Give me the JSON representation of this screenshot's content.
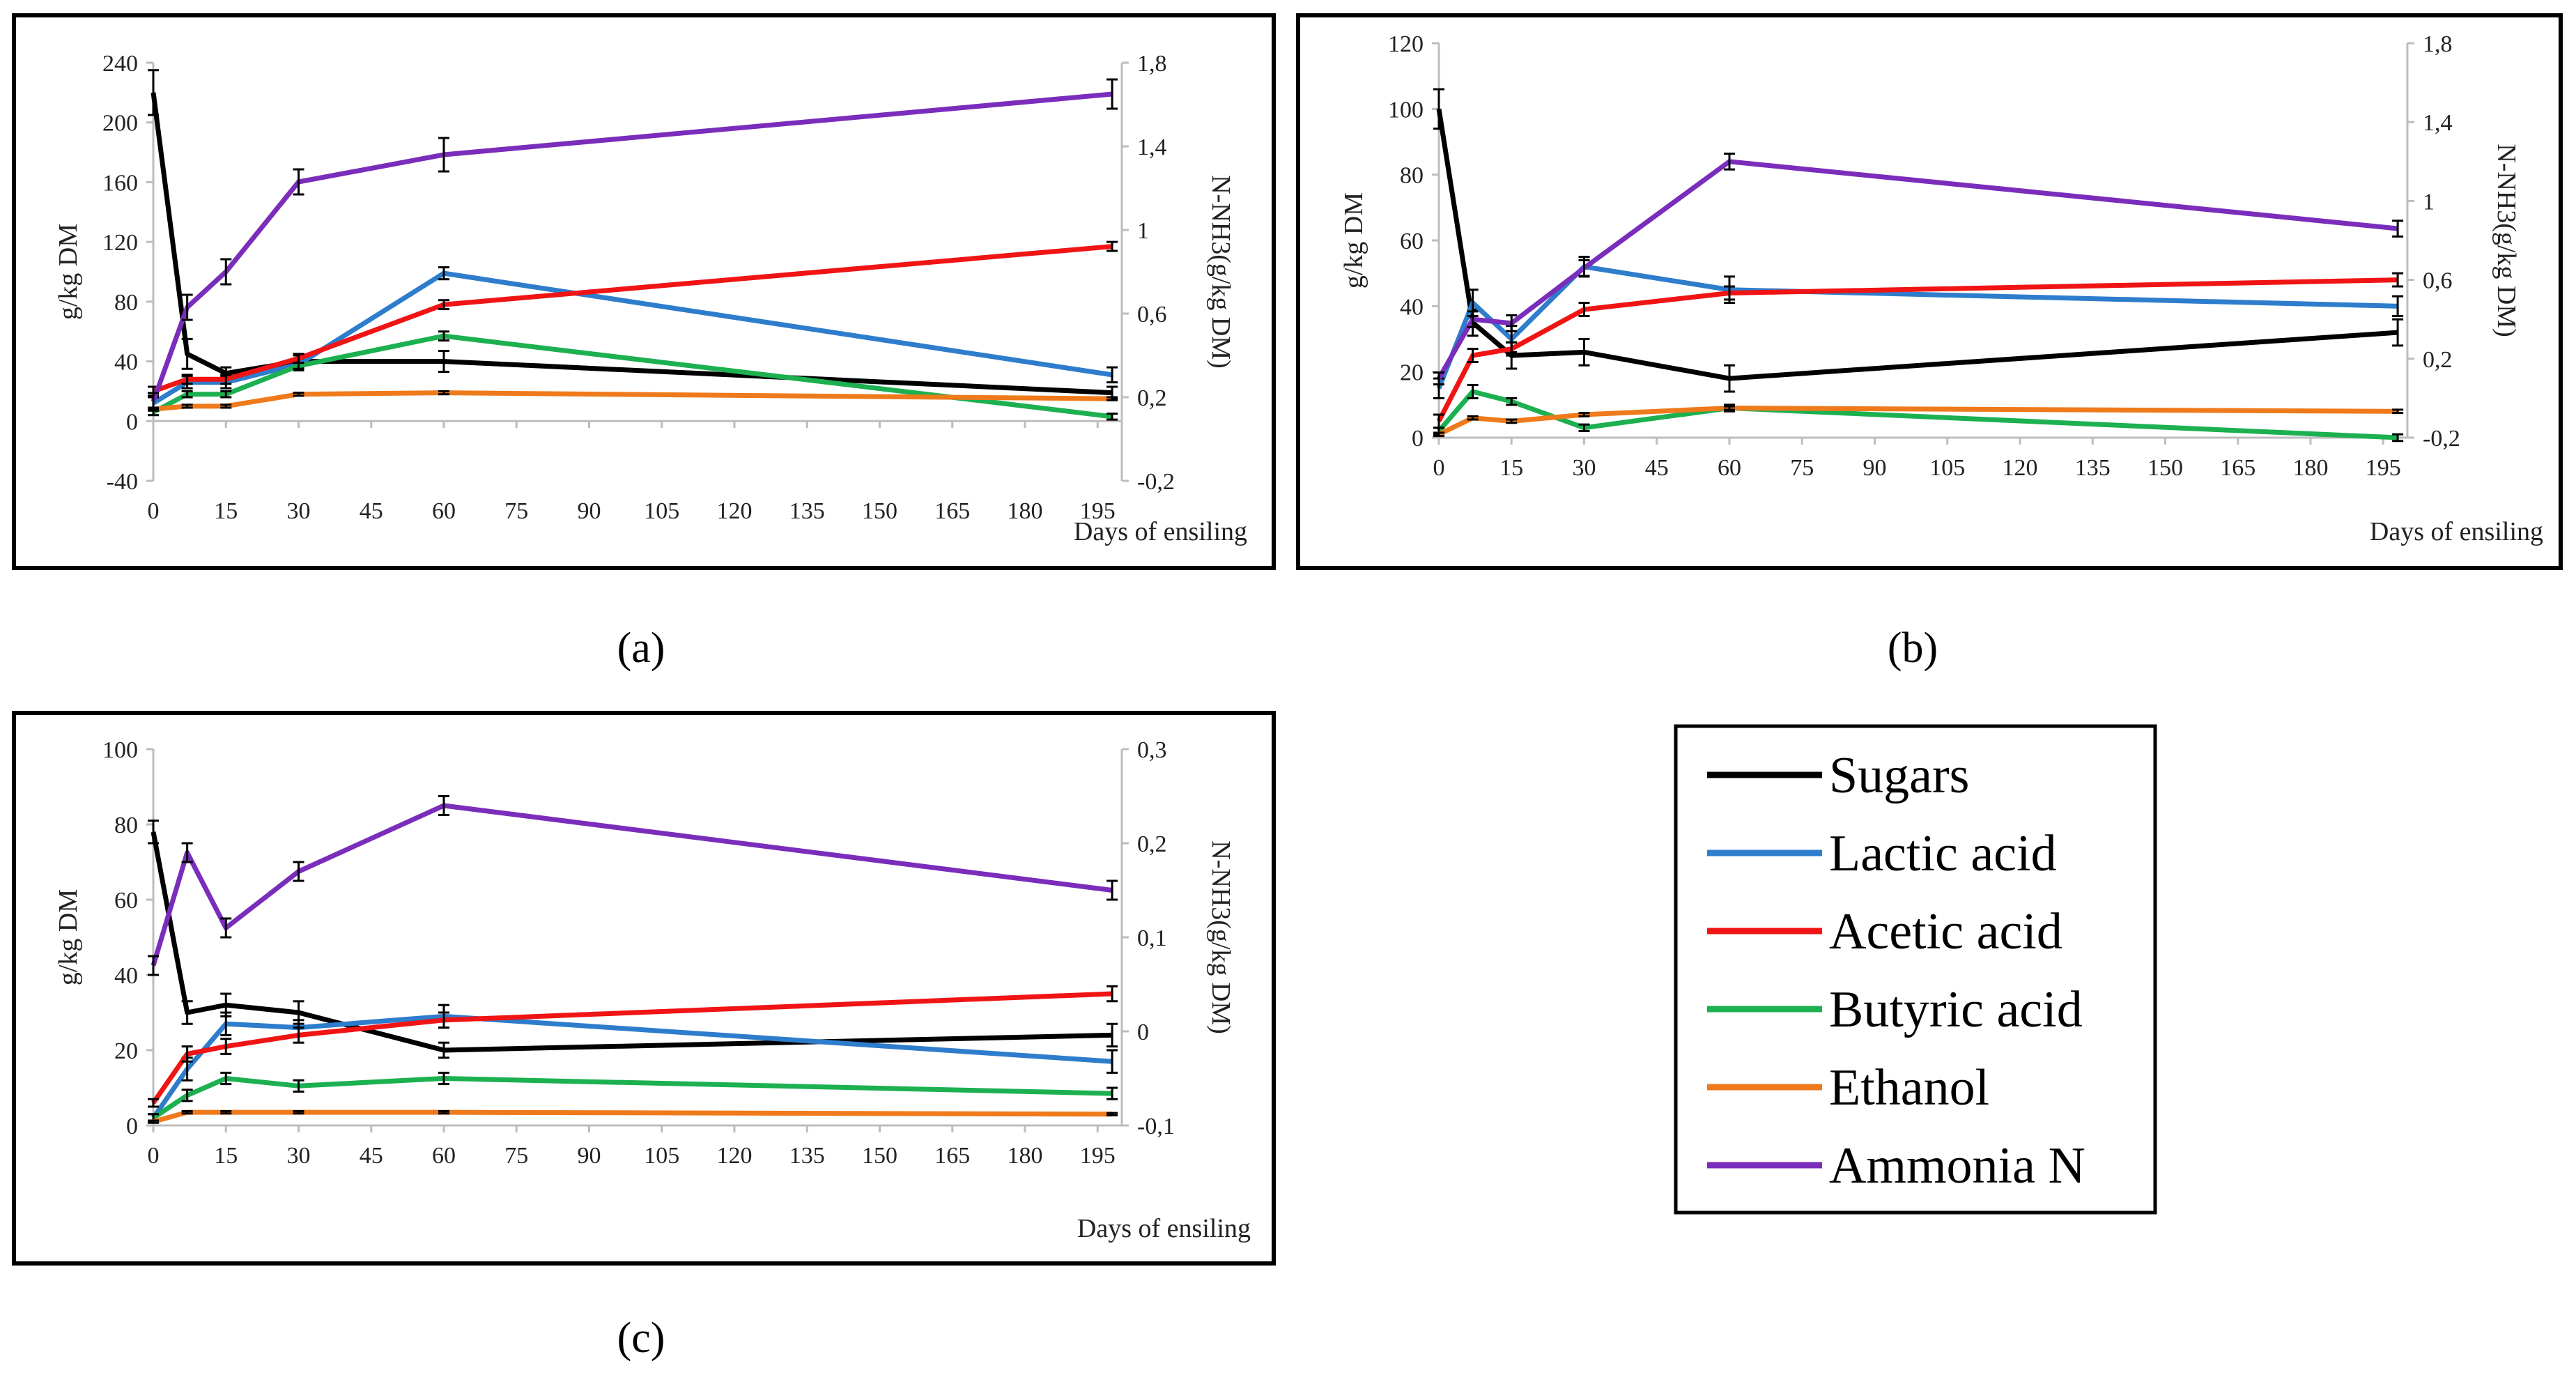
{
  "chart_data": [
    {
      "panel": "(a)",
      "type": "line",
      "xlabel": "Days of ensiling",
      "ylabel": "g/kg DM",
      "y2label": "N-NH3(g/kg DM)",
      "xlim": [
        0,
        200
      ],
      "xticks": [
        0,
        15,
        30,
        45,
        60,
        75,
        90,
        105,
        120,
        135,
        150,
        165,
        180,
        195
      ],
      "ylim": [
        -40,
        240
      ],
      "yticks": [
        "-40",
        "0",
        "40",
        "80",
        "120",
        "160",
        "200",
        "240"
      ],
      "y2lim": [
        -0.2,
        1.8
      ],
      "y2ticks": [
        "-0,2",
        "0,2",
        "0,6",
        "1",
        "1,4",
        "1,8"
      ],
      "x": [
        0,
        7,
        15,
        30,
        60,
        198
      ],
      "series": [
        {
          "name": "Sugars",
          "axis": "left",
          "values": [
            220,
            45,
            32,
            40,
            40,
            19
          ],
          "errors": [
            15,
            10,
            4,
            4,
            7,
            4
          ]
        },
        {
          "name": "Lactic acid",
          "axis": "left",
          "values": [
            12,
            26,
            26,
            38,
            99,
            31
          ],
          "errors": [
            4,
            4,
            4,
            4,
            4,
            5
          ]
        },
        {
          "name": "Acetic acid",
          "axis": "left",
          "values": [
            20,
            28,
            28,
            42,
            78,
            117
          ],
          "errors": [
            3,
            3,
            3,
            3,
            3,
            3
          ]
        },
        {
          "name": "Butyric acid",
          "axis": "left",
          "values": [
            6,
            18,
            18,
            37,
            57,
            3
          ],
          "errors": [
            2,
            2,
            2,
            2,
            3,
            2
          ]
        },
        {
          "name": "Ethanol",
          "axis": "left",
          "values": [
            8,
            10,
            10,
            18,
            19,
            15
          ],
          "errors": [
            1,
            1,
            1,
            1,
            1,
            1
          ]
        },
        {
          "name": "Ammonia N",
          "axis": "right",
          "values": [
            0.18,
            0.63,
            0.8,
            1.23,
            1.36,
            1.65
          ],
          "errors": [
            0.04,
            0.06,
            0.06,
            0.06,
            0.08,
            0.07
          ]
        }
      ]
    },
    {
      "panel": "(b)",
      "type": "line",
      "xlabel": "Days of ensiling",
      "ylabel": "g/kg DM",
      "y2label": "N-NH3(g/kg DM)",
      "xlim": [
        0,
        200
      ],
      "xticks": [
        0,
        15,
        30,
        45,
        60,
        75,
        90,
        105,
        120,
        135,
        150,
        165,
        180,
        195
      ],
      "ylim": [
        0,
        120
      ],
      "yticks": [
        "0",
        "20",
        "40",
        "60",
        "80",
        "100",
        "120"
      ],
      "y2lim": [
        -0.2,
        1.8
      ],
      "y2ticks": [
        "-0,2",
        "0,2",
        "0,6",
        "1",
        "1,4",
        "1,8"
      ],
      "x": [
        0,
        7,
        15,
        30,
        60,
        198
      ],
      "series": [
        {
          "name": "Sugars",
          "axis": "left",
          "values": [
            100,
            35,
            25,
            26,
            18,
            32
          ],
          "errors": [
            6,
            4,
            4,
            4,
            4,
            4
          ]
        },
        {
          "name": "Lactic acid",
          "axis": "left",
          "values": [
            15,
            41,
            30,
            52,
            45,
            40
          ],
          "errors": [
            3,
            4,
            4,
            3,
            4,
            3
          ]
        },
        {
          "name": "Acetic acid",
          "axis": "left",
          "values": [
            5,
            25,
            27,
            39,
            44,
            48
          ],
          "errors": [
            2,
            2,
            2,
            2,
            2,
            2
          ]
        },
        {
          "name": "Butyric acid",
          "axis": "left",
          "values": [
            2,
            14,
            11,
            3,
            9,
            0
          ],
          "errors": [
            1,
            2,
            1,
            1,
            1,
            1
          ]
        },
        {
          "name": "Ethanol",
          "axis": "left",
          "values": [
            1,
            6,
            5,
            7,
            9,
            8
          ],
          "errors": [
            0.5,
            0.5,
            0.5,
            0.5,
            0.5,
            0.5
          ]
        },
        {
          "name": "Ammonia N",
          "axis": "right",
          "values": [
            0.1,
            0.4,
            0.38,
            0.66,
            1.2,
            0.86
          ],
          "errors": [
            0.03,
            0.04,
            0.04,
            0.04,
            0.04,
            0.04
          ]
        }
      ]
    },
    {
      "panel": "(c)",
      "type": "line",
      "xlabel": "Days of ensiling",
      "ylabel": "g/kg DM",
      "y2label": "N-NH3(g/kg DM)",
      "xlim": [
        0,
        200
      ],
      "xticks": [
        0,
        15,
        30,
        45,
        60,
        75,
        90,
        105,
        120,
        135,
        150,
        165,
        180,
        195
      ],
      "ylim": [
        0,
        100
      ],
      "yticks": [
        "0",
        "20",
        "40",
        "60",
        "80",
        "100"
      ],
      "y2lim": [
        -0.1,
        0.3
      ],
      "y2ticks": [
        "-0,1",
        "0",
        "0,1",
        "0,2",
        "0,3"
      ],
      "x": [
        0,
        7,
        15,
        30,
        60,
        198
      ],
      "series": [
        {
          "name": "Sugars",
          "axis": "left",
          "values": [
            78,
            30,
            32,
            30,
            20,
            24
          ],
          "errors": [
            3,
            3,
            3,
            3,
            2,
            3
          ]
        },
        {
          "name": "Lactic acid",
          "axis": "left",
          "values": [
            2,
            15,
            27,
            26,
            29,
            17
          ],
          "errors": [
            1,
            3,
            3,
            2,
            3,
            3
          ]
        },
        {
          "name": "Acetic acid",
          "axis": "left",
          "values": [
            6,
            19,
            21,
            24,
            28,
            35
          ],
          "errors": [
            1,
            2,
            2,
            2,
            2,
            2
          ]
        },
        {
          "name": "Butyric acid",
          "axis": "left",
          "values": [
            2,
            8,
            12.5,
            10.5,
            12.5,
            8.5
          ],
          "errors": [
            1,
            1.5,
            1.5,
            1.5,
            1.5,
            1.5
          ]
        },
        {
          "name": "Ethanol",
          "axis": "left",
          "values": [
            1,
            3.5,
            3.5,
            3.5,
            3.5,
            3
          ],
          "errors": [
            0.3,
            0.3,
            0.3,
            0.3,
            0.3,
            0.3
          ]
        },
        {
          "name": "Ammonia N",
          "axis": "right",
          "values": [
            0.07,
            0.19,
            0.11,
            0.17,
            0.24,
            0.15
          ],
          "errors": [
            0.01,
            0.01,
            0.01,
            0.01,
            0.01,
            0.01
          ]
        }
      ]
    }
  ],
  "legend": {
    "items": [
      {
        "label": "Sugars",
        "color": "#000000"
      },
      {
        "label": "Lactic acid",
        "color": "#2e7dcc"
      },
      {
        "label": "Acetic acid",
        "color": "#f01414"
      },
      {
        "label": "Butyric acid",
        "color": "#1cb050"
      },
      {
        "label": "Ethanol",
        "color": "#ee7a1c"
      },
      {
        "label": "Ammonia N",
        "color": "#7a2dbb"
      }
    ]
  }
}
